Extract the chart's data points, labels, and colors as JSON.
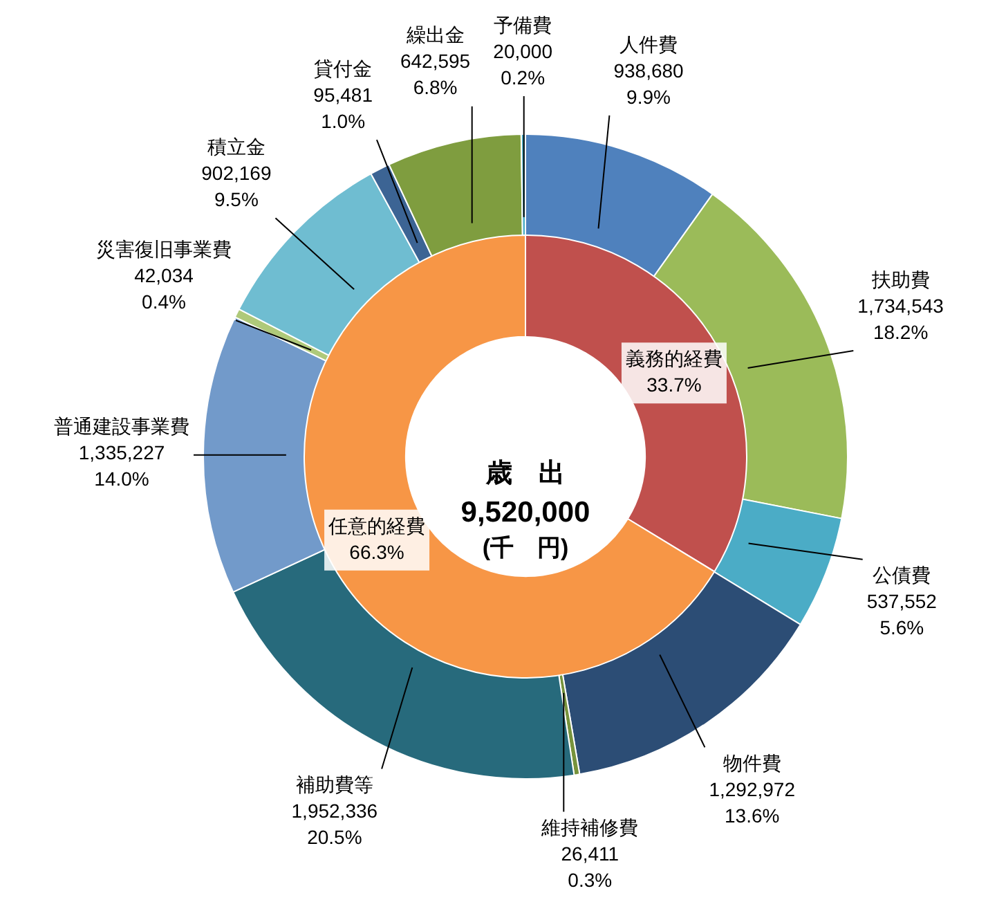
{
  "chart_data": [
    {
      "type": "donut",
      "categories": [
        "人件費",
        "扶助費",
        "公債費",
        "物件費",
        "維持補修費",
        "補助費等",
        "普通建設事業費",
        "災害復旧事業費",
        "積立金",
        "貸付金",
        "繰出金",
        "予備費"
      ],
      "values": [
        938680,
        1734543,
        537552,
        1292972,
        26411,
        1952336,
        1335227,
        42034,
        902169,
        95481,
        642595,
        20000
      ],
      "colors": [
        "#4f81bd",
        "#9bbb59",
        "#4bacc6",
        "#2c4d75",
        "#77933c",
        "#276a7c",
        "#729aca",
        "#afc97a",
        "#6fbdd1",
        "#3c6494",
        "#7f9d3f",
        "#4bacc6"
      ],
      "value_labels": [
        "938,680\n9.9%",
        "1,734,543\n18.2%",
        "537,552\n5.6%",
        "1,292,972\n13.6%",
        "26,411\n0.3%",
        "1,952,336\n20.5%",
        "1,335,227\n14.0%",
        "42,034\n0.4%",
        "902,169\n9.5%",
        "95,481\n1.0%",
        "642,595\n6.8%",
        "20,000\n0.2%"
      ]
    },
    {
      "type": "donut",
      "title": "歳　出",
      "subtitle": "9,520,000",
      "annotations": [
        "(千　円)"
      ],
      "categories": [
        "義務的経費",
        "任意的経費"
      ],
      "values": [
        33.7,
        66.3
      ],
      "colors": [
        "#c0504d",
        "#f79646"
      ],
      "value_labels": [
        "33.7%",
        "66.3%"
      ]
    }
  ]
}
